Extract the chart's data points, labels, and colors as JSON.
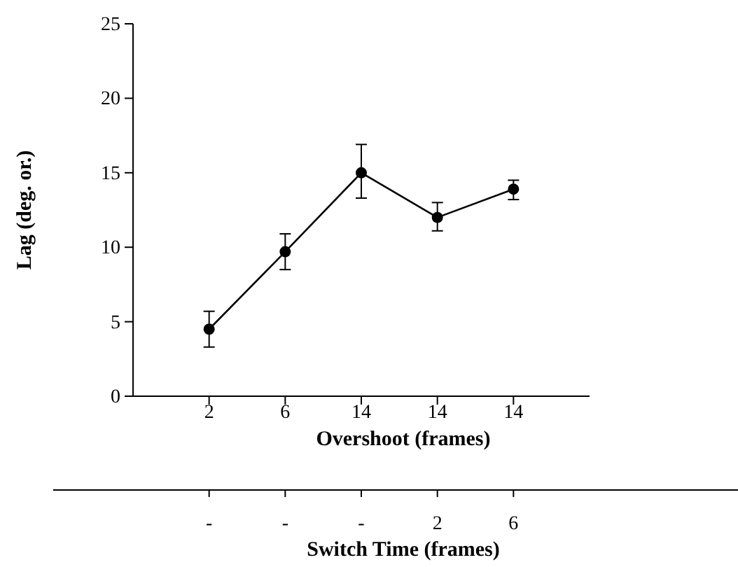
{
  "chart_data": {
    "type": "line",
    "xlabel": "Overshoot (frames)",
    "ylabel": "Lag (deg. or.)",
    "categories": [
      "2",
      "6",
      "14",
      "14",
      "14"
    ],
    "series": [
      {
        "color": "#000000",
        "values": [
          4.5,
          9.7,
          15.0,
          12.0,
          13.9
        ],
        "errors": [
          [
            3.3,
            5.7
          ],
          [
            8.5,
            10.9
          ],
          [
            13.3,
            16.9
          ],
          [
            11.1,
            13.0
          ],
          [
            13.2,
            14.5
          ]
        ]
      }
    ],
    "ylim": [
      0,
      25
    ],
    "yticks": [
      0,
      5,
      10,
      15,
      20,
      25
    ],
    "grid": false,
    "marker": "circle",
    "line_style": "solid",
    "annotations": [
      "-",
      "-",
      "-",
      "2",
      "6",
      "Switch Time (frames)"
    ]
  }
}
